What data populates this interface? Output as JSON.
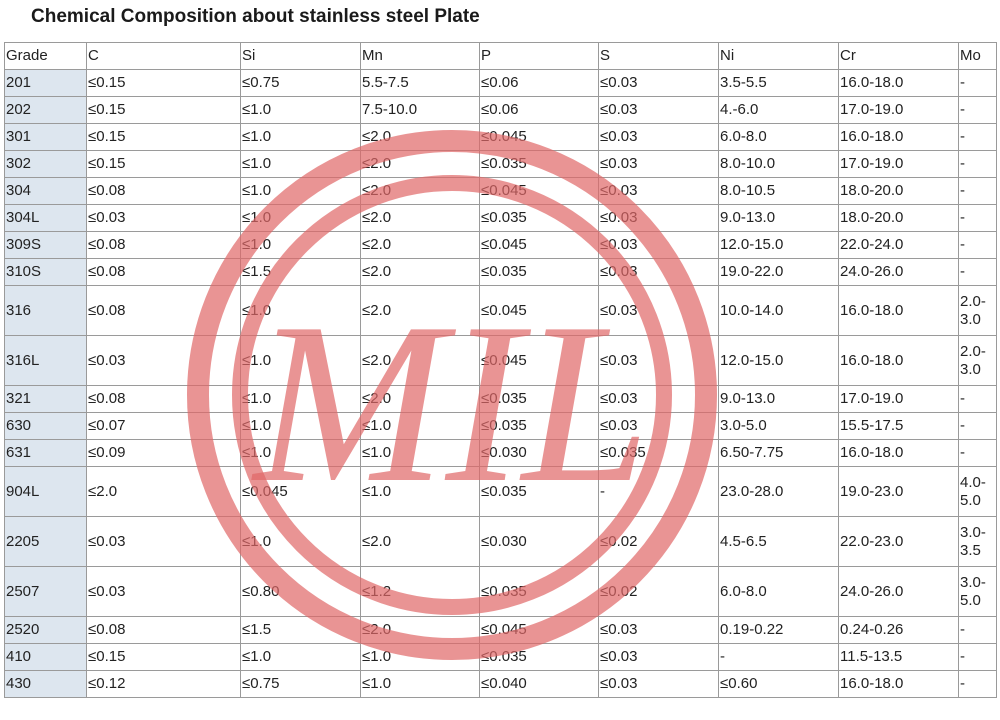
{
  "title": "Chemical Composition about stainless steel Plate",
  "table": {
    "headers": [
      "Grade",
      "C",
      "Si",
      "Mn",
      "P",
      "S",
      "Ni",
      "Cr",
      "Mo"
    ],
    "rows": [
      [
        "201",
        "≤0.15",
        "≤0.75",
        "5.5-7.5",
        "≤0.06",
        "≤0.03",
        "3.5-5.5",
        "16.0-18.0",
        "-"
      ],
      [
        "202",
        "≤0.15",
        "≤1.0",
        "7.5-10.0",
        "≤0.06",
        "≤0.03",
        "4.-6.0",
        "17.0-19.0",
        "-"
      ],
      [
        "301",
        "≤0.15",
        "≤1.0",
        "≤2.0",
        "≤0.045",
        "≤0.03",
        "6.0-8.0",
        "16.0-18.0",
        "-"
      ],
      [
        "302",
        "≤0.15",
        "≤1.0",
        "≤2.0",
        "≤0.035",
        "≤0.03",
        "8.0-10.0",
        "17.0-19.0",
        "-"
      ],
      [
        "304",
        "≤0.08",
        "≤1.0",
        "≤2.0",
        "≤0.045",
        "≤0.03",
        "8.0-10.5",
        "18.0-20.0",
        "-"
      ],
      [
        "304L",
        "≤0.03",
        "≤1.0",
        "≤2.0",
        "≤0.035",
        "≤0.03",
        "9.0-13.0",
        "18.0-20.0",
        "-"
      ],
      [
        "309S",
        "≤0.08",
        "≤1.0",
        "≤2.0",
        "≤0.045",
        "≤0.03",
        "12.0-15.0",
        "22.0-24.0",
        "-"
      ],
      [
        "310S",
        "≤0.08",
        "≤1.5",
        "≤2.0",
        "≤0.035",
        "≤0.03",
        "19.0-22.0",
        "24.0-26.0",
        "-"
      ],
      [
        "316",
        "≤0.08",
        "≤1.0",
        "≤2.0",
        "≤0.045",
        "≤0.03",
        "10.0-14.0",
        "16.0-18.0",
        "2.0-3.0"
      ],
      [
        "316L",
        "≤0.03",
        "≤1.0",
        "≤2.0",
        "≤0.045",
        "≤0.03",
        "12.0-15.0",
        "16.0-18.0",
        "2.0-3.0"
      ],
      [
        "321",
        "≤0.08",
        "≤1.0",
        "≤2.0",
        "≤0.035",
        "≤0.03",
        "9.0-13.0",
        "17.0-19.0",
        "-"
      ],
      [
        "630",
        "≤0.07",
        "≤1.0",
        "≤1.0",
        "≤0.035",
        "≤0.03",
        "3.0-5.0",
        "15.5-17.5",
        "-"
      ],
      [
        "631",
        "≤0.09",
        "≤1.0",
        "≤1.0",
        "≤0.030",
        "≤0.035",
        "6.50-7.75",
        "16.0-18.0",
        "-"
      ],
      [
        "904L",
        "≤2.0",
        "≤0.045",
        "≤1.0",
        "≤0.035",
        "-",
        "23.0-28.0",
        "19.0-23.0",
        "4.0-5.0"
      ],
      [
        "2205",
        "≤0.03",
        "≤1.0",
        "≤2.0",
        "≤0.030",
        "≤0.02",
        "4.5-6.5",
        "22.0-23.0",
        "3.0-3.5"
      ],
      [
        "2507",
        "≤0.03",
        "≤0.80",
        "≤1.2",
        "≤0.035",
        "≤0.02",
        "6.0-8.0",
        "24.0-26.0",
        "3.0-5.0"
      ],
      [
        "2520",
        "≤0.08",
        "≤1.5",
        "≤2.0",
        "≤0.045",
        "≤0.03",
        "0.19-0.22",
        "0.24-0.26",
        "-"
      ],
      [
        "410",
        "≤0.15",
        "≤1.0",
        "≤1.0",
        "≤0.035",
        "≤0.03",
        "-",
        "11.5-13.5",
        "-"
      ],
      [
        "430",
        "≤0.12",
        "≤0.75",
        "≤1.0",
        "≤0.040",
        "≤0.03",
        "≤0.60",
        "16.0-18.0",
        "-"
      ]
    ]
  },
  "watermark": {
    "text": "MIL",
    "color": "#e06666"
  }
}
